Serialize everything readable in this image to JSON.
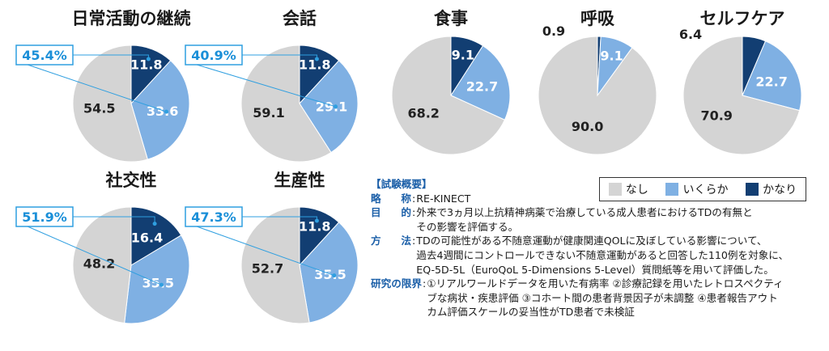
{
  "legend": {
    "items": [
      {
        "label": "なし",
        "color": "#d4d4d4"
      },
      {
        "label": "いくらか",
        "color": "#7fb0e3"
      },
      {
        "label": "かなり",
        "color": "#123e72"
      }
    ]
  },
  "chart_data": [
    {
      "type": "pie",
      "title": "日常活動の継続",
      "categories": [
        "なし",
        "いくらか",
        "かなり"
      ],
      "values": [
        54.5,
        33.6,
        11.8
      ],
      "highlight": "45.4%"
    },
    {
      "type": "pie",
      "title": "会話",
      "categories": [
        "なし",
        "いくらか",
        "かなり"
      ],
      "values": [
        59.1,
        29.1,
        11.8
      ],
      "highlight": "40.9%"
    },
    {
      "type": "pie",
      "title": "食事",
      "categories": [
        "なし",
        "いくらか",
        "かなり"
      ],
      "values": [
        68.2,
        22.7,
        9.1
      ]
    },
    {
      "type": "pie",
      "title": "呼吸",
      "categories": [
        "なし",
        "いくらか",
        "かなり"
      ],
      "values": [
        90.0,
        9.1,
        0.9
      ]
    },
    {
      "type": "pie",
      "title": "セルフケア",
      "categories": [
        "なし",
        "いくらか",
        "かなり"
      ],
      "values": [
        70.9,
        22.7,
        6.4
      ]
    },
    {
      "type": "pie",
      "title": "社交性",
      "categories": [
        "なし",
        "いくらか",
        "かなり"
      ],
      "values": [
        48.2,
        35.5,
        16.4
      ],
      "highlight": "51.9%"
    },
    {
      "type": "pie",
      "title": "生産性",
      "categories": [
        "なし",
        "いくらか",
        "かなり"
      ],
      "values": [
        52.7,
        35.5,
        11.8
      ],
      "highlight": "47.3%"
    }
  ],
  "study": {
    "title": "【試験概要】",
    "rows": [
      {
        "key": [
          "略",
          "称"
        ],
        "lines": [
          "RE-KINECT"
        ]
      },
      {
        "key": [
          "目",
          "的"
        ],
        "lines": [
          "外来で3ヵ月以上抗精神病薬で治療している成人患者におけるTDの有無と",
          "その影響を評価する。"
        ]
      },
      {
        "key": [
          "方",
          "法"
        ],
        "lines": [
          "TDの可能性がある不随意運動が健康関連QOLに及ぼしている影響について、",
          "過去4週間にコントロールできない不随意運動があると回答した110例を対象に、",
          "EQ-5D-5L（EuroQoL 5-Dimensions 5-Level）質問紙等を用いて評価した。"
        ]
      },
      {
        "key": [
          "研究の限界"
        ],
        "lines": [
          "①リアルワールドデータを用いた有病率 ②診療記録を用いたレトロスペクティ",
          "ブな病状・疾患評価 ③コホート間の患者背景因子が未調整 ④患者報告アウト",
          "カム評価スケールの妥当性がTD患者で未検証"
        ]
      }
    ]
  }
}
